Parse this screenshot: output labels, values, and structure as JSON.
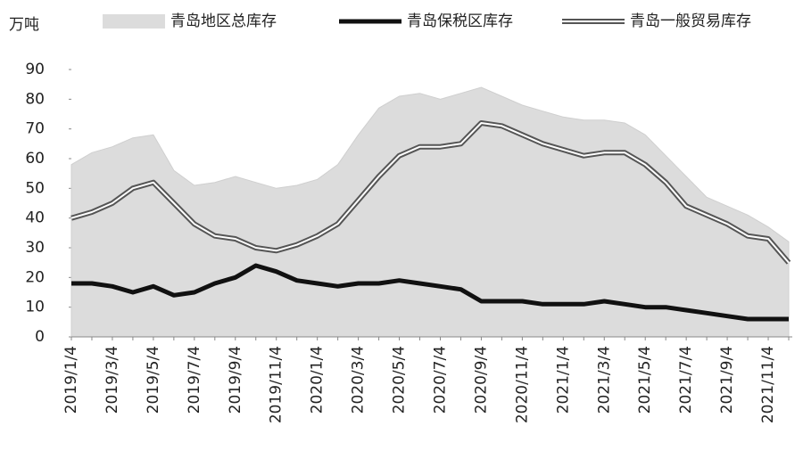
{
  "chart_data": {
    "type": "line",
    "y_label": "万吨",
    "categories": [
      "2019/1/4",
      null,
      "2019/3/4",
      null,
      "2019/5/4",
      null,
      "2019/7/4",
      null,
      "2019/9/4",
      null,
      "2019/11/4",
      null,
      "2020/1/4",
      null,
      "2020/3/4",
      null,
      "2020/5/4",
      null,
      "2020/7/4",
      null,
      "2020/9/4",
      null,
      "2020/11/4",
      null,
      "2021/1/4",
      null,
      "2021/3/4",
      null,
      "2021/5/4",
      null,
      "2021/7/4",
      null,
      "2021/9/4",
      null,
      "2021/11/4",
      null
    ],
    "series": [
      {
        "name": "青岛地区总库存",
        "style": "area",
        "color": "#dcdcdc",
        "values": [
          58,
          62,
          64,
          67,
          68,
          56,
          51,
          52,
          54,
          52,
          50,
          51,
          53,
          58,
          68,
          77,
          81,
          82,
          80,
          82,
          84,
          81,
          78,
          76,
          74,
          73,
          73,
          72,
          68,
          61,
          54,
          47,
          44,
          41,
          37,
          32
        ]
      },
      {
        "name": "青岛保税区库存",
        "style": "line",
        "color": "#111111",
        "values": [
          18,
          18,
          17,
          15,
          17,
          14,
          15,
          18,
          20,
          24,
          22,
          19,
          18,
          17,
          18,
          18,
          19,
          18,
          17,
          16,
          12,
          12,
          12,
          11,
          11,
          11,
          12,
          11,
          10,
          10,
          9,
          8,
          7,
          6,
          6,
          6
        ]
      },
      {
        "name": "青岛一般贸易库存",
        "style": "outlined",
        "color": "#555555",
        "values": [
          40,
          42,
          45,
          50,
          52,
          45,
          38,
          34,
          33,
          30,
          29,
          31,
          34,
          38,
          46,
          54,
          61,
          64,
          64,
          65,
          72,
          71,
          68,
          65,
          63,
          61,
          62,
          62,
          58,
          52,
          44,
          41,
          38,
          34,
          33,
          25
        ]
      }
    ],
    "ylim": [
      0,
      90
    ],
    "yticks": [
      0,
      10,
      20,
      30,
      40,
      50,
      60,
      70,
      80,
      90
    ],
    "grid": false
  }
}
